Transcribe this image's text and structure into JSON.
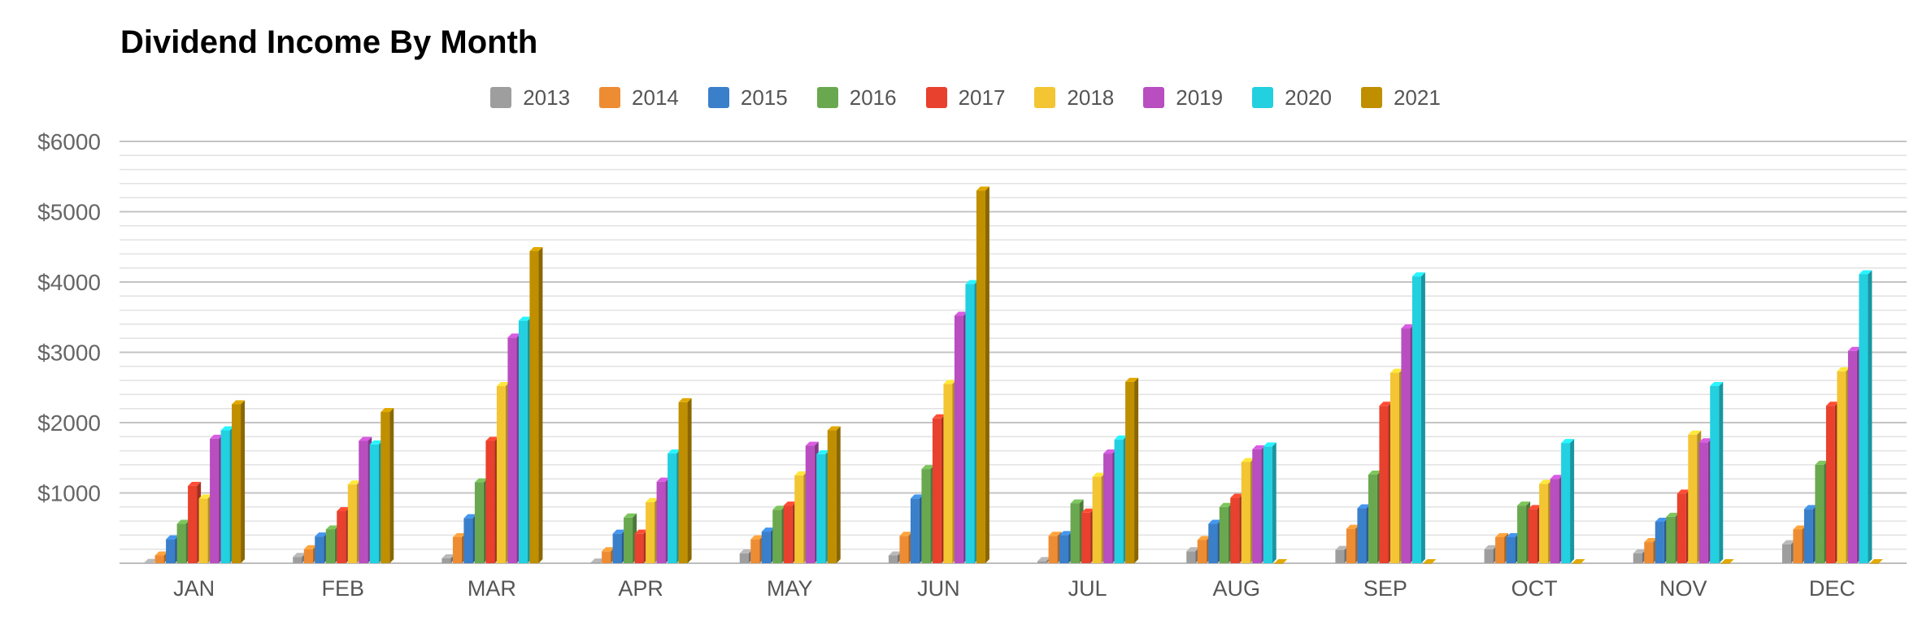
{
  "chart_data": {
    "type": "bar",
    "title": "Dividend Income By Month",
    "xlabel": "",
    "ylabel": "",
    "ylim": [
      0,
      6000
    ],
    "yticks": [
      1000,
      2000,
      3000,
      4000,
      5000,
      6000
    ],
    "ytick_labels": [
      "$1000",
      "$2000",
      "$3000",
      "$4000",
      "$5000",
      "$6000"
    ],
    "grid": true,
    "legend_position": "top-center",
    "categories": [
      "JAN",
      "FEB",
      "MAR",
      "APR",
      "MAY",
      "JUN",
      "JUL",
      "AUG",
      "SEP",
      "OCT",
      "NOV",
      "DEC"
    ],
    "series": [
      {
        "name": "2013",
        "color": "#9e9e9e",
        "values": [
          5,
          90,
          70,
          10,
          140,
          110,
          30,
          170,
          190,
          200,
          140,
          270
        ]
      },
      {
        "name": "2014",
        "color": "#ee8c34",
        "values": [
          110,
          200,
          370,
          170,
          340,
          390,
          390,
          330,
          490,
          370,
          300,
          480
        ]
      },
      {
        "name": "2015",
        "color": "#3a7fca",
        "values": [
          340,
          380,
          640,
          420,
          450,
          920,
          400,
          560,
          780,
          370,
          590,
          770
        ]
      },
      {
        "name": "2016",
        "color": "#6aa84f",
        "values": [
          560,
          480,
          1150,
          650,
          760,
          1340,
          850,
          800,
          1260,
          820,
          660,
          1400
        ]
      },
      {
        "name": "2017",
        "color": "#e8412d",
        "values": [
          1100,
          740,
          1740,
          420,
          820,
          2060,
          720,
          930,
          2240,
          770,
          990,
          2240
        ]
      },
      {
        "name": "2018",
        "color": "#f3c533",
        "values": [
          920,
          1120,
          2520,
          870,
          1250,
          2550,
          1230,
          1440,
          2710,
          1130,
          1830,
          2730
        ]
      },
      {
        "name": "2019",
        "color": "#b84ec0",
        "values": [
          1770,
          1740,
          3210,
          1160,
          1670,
          3520,
          1560,
          1620,
          3340,
          1200,
          1720,
          3020
        ]
      },
      {
        "name": "2020",
        "color": "#22d0e0",
        "values": [
          1890,
          1690,
          3450,
          1560,
          1550,
          3970,
          1760,
          1660,
          4080,
          1710,
          2520,
          4110
        ]
      },
      {
        "name": "2021",
        "color": "#bf8f00",
        "values": [
          2260,
          2150,
          4440,
          2290,
          1890,
          5300,
          2580,
          0,
          0,
          0,
          0,
          0
        ]
      }
    ]
  }
}
